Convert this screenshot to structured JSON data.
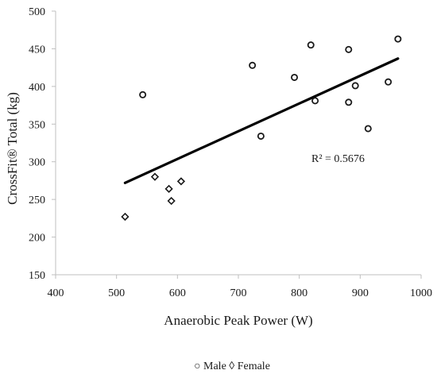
{
  "chart_data": {
    "type": "scatter",
    "title": "",
    "xlabel": "Anaerobic Peak Power (W)",
    "ylabel": "CrossFit® Total (kg)",
    "xlim": [
      400,
      1000
    ],
    "ylim": [
      150,
      500
    ],
    "xticks": [
      "400",
      "500",
      "600",
      "700",
      "800",
      "900",
      "1000"
    ],
    "yticks": [
      "150",
      "200",
      "250",
      "300",
      "350",
      "400",
      "450",
      "500"
    ],
    "grid": false,
    "series": [
      {
        "name": "Male",
        "marker": "circle",
        "x": [
          543,
          723,
          737,
          792,
          819,
          826,
          881,
          881,
          892,
          913,
          946,
          962
        ],
        "y": [
          389,
          428,
          334,
          412,
          455,
          381,
          449,
          379,
          401,
          344,
          406,
          463
        ]
      },
      {
        "name": "Female",
        "marker": "diamond",
        "x": [
          514,
          563,
          586,
          590,
          606
        ],
        "y": [
          227,
          280,
          264,
          248,
          274
        ]
      }
    ],
    "trendline": {
      "x": [
        514,
        962
      ],
      "y": [
        272,
        437
      ]
    },
    "annotation": "R² = 0.5676",
    "legend": {
      "position": "bottom",
      "text": "○ Male ◊ Female"
    },
    "colors": {
      "marker": "#1a1a1a",
      "trendline": "#000000",
      "axis": "#bfbfbf"
    }
  }
}
